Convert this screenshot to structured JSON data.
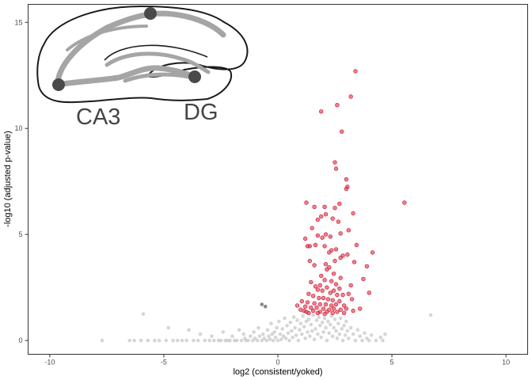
{
  "chart_data": {
    "type": "scatter",
    "title": "",
    "xlabel": "log2 (consistent/yoked)",
    "ylabel": "-log10 (adjusted p-value)",
    "xlim": [
      -10.95,
      10.95
    ],
    "ylim": [
      -0.65,
      15.85
    ],
    "x_ticks": [
      -10,
      -5,
      0,
      5,
      10
    ],
    "y_ticks": [
      0,
      5,
      10,
      15
    ],
    "grid": false,
    "legend": "none",
    "colors": {
      "significant": "#d7263d",
      "not_significant": "#c8c8c8",
      "down_marked": "#616161"
    },
    "inset": {
      "labels": [
        "CA3",
        "DG"
      ]
    },
    "series": [
      {
        "category": "not_significant",
        "points": [
          [
            -7.7,
            0.0
          ],
          [
            -6.5,
            0.0
          ],
          [
            -6.3,
            0.0
          ],
          [
            -6.0,
            0.0
          ],
          [
            -5.9,
            1.25
          ],
          [
            -5.7,
            0.0
          ],
          [
            -5.4,
            0.0
          ],
          [
            -5.2,
            0.0
          ],
          [
            -4.9,
            0.0
          ],
          [
            -4.8,
            0.6
          ],
          [
            -4.6,
            0.0
          ],
          [
            -4.4,
            0.0
          ],
          [
            -4.2,
            0.0
          ],
          [
            -4.0,
            0.0
          ],
          [
            -3.9,
            0.5
          ],
          [
            -3.7,
            0.0
          ],
          [
            -3.5,
            0.0
          ],
          [
            -3.4,
            0.3
          ],
          [
            -3.2,
            0.0
          ],
          [
            -3.0,
            0.0
          ],
          [
            -2.9,
            0.2
          ],
          [
            -2.8,
            0.0
          ],
          [
            -2.6,
            0.0
          ],
          [
            -2.5,
            0.0
          ],
          [
            -2.4,
            0.4
          ],
          [
            -2.3,
            0.0
          ],
          [
            -2.2,
            0.0
          ],
          [
            -2.1,
            0.0
          ],
          [
            -2.0,
            0.2
          ],
          [
            -1.9,
            0.0
          ],
          [
            -1.8,
            0.0
          ],
          [
            -1.7,
            0.5
          ],
          [
            -1.6,
            0.0
          ],
          [
            -1.5,
            0.3
          ],
          [
            -1.45,
            0.1
          ],
          [
            -1.4,
            0.0
          ],
          [
            -1.3,
            0.0
          ],
          [
            -1.2,
            0.2
          ],
          [
            -1.1,
            0.0
          ],
          [
            -1.05,
            0.4
          ],
          [
            -1.0,
            0.1
          ],
          [
            -0.9,
            0.0
          ],
          [
            -0.85,
            0.6
          ],
          [
            -0.8,
            0.2
          ],
          [
            -0.7,
            0.0
          ],
          [
            -0.65,
            0.3
          ],
          [
            -0.6,
            0.1
          ],
          [
            -0.5,
            0.0
          ],
          [
            -0.45,
            0.5
          ],
          [
            -0.4,
            0.2
          ],
          [
            -0.35,
            0.05
          ],
          [
            -0.3,
            0.8
          ],
          [
            -0.25,
            0.3
          ],
          [
            -0.2,
            0.0
          ],
          [
            -0.15,
            0.4
          ],
          [
            -0.1,
            0.15
          ],
          [
            -0.05,
            0.6
          ],
          [
            0.0,
            0.0
          ],
          [
            0.05,
            0.9
          ],
          [
            0.1,
            0.3
          ],
          [
            0.15,
            0.05
          ],
          [
            0.2,
            0.55
          ],
          [
            0.25,
            0.2
          ],
          [
            0.3,
            1.05
          ],
          [
            0.35,
            0.1
          ],
          [
            0.4,
            0.7
          ],
          [
            0.45,
            0.35
          ],
          [
            0.5,
            0.0
          ],
          [
            0.55,
            0.85
          ],
          [
            0.6,
            0.45
          ],
          [
            0.65,
            0.15
          ],
          [
            0.7,
            1.1
          ],
          [
            0.75,
            0.6
          ],
          [
            0.8,
            0.25
          ],
          [
            0.85,
            0.95
          ],
          [
            0.9,
            0.0
          ],
          [
            0.95,
            0.5
          ],
          [
            1.0,
            0.8
          ],
          [
            1.05,
            0.3
          ],
          [
            1.1,
            1.15
          ],
          [
            1.15,
            0.65
          ],
          [
            1.2,
            0.1
          ],
          [
            1.25,
            0.9
          ],
          [
            1.3,
            0.4
          ],
          [
            1.35,
            1.0
          ],
          [
            1.4,
            0.2
          ],
          [
            1.45,
            0.75
          ],
          [
            1.5,
            0.45
          ],
          [
            1.55,
            1.2
          ],
          [
            1.6,
            0.05
          ],
          [
            1.65,
            0.55
          ],
          [
            1.7,
            0.95
          ],
          [
            1.75,
            0.3
          ],
          [
            1.8,
            1.1
          ],
          [
            1.85,
            0.7
          ],
          [
            1.9,
            0.15
          ],
          [
            1.95,
            0.85
          ],
          [
            2.0,
            0.4
          ],
          [
            2.05,
            1.05
          ],
          [
            2.1,
            0.6
          ],
          [
            2.15,
            0.0
          ],
          [
            2.2,
            0.9
          ],
          [
            2.25,
            0.35
          ],
          [
            2.3,
            0.75
          ],
          [
            2.35,
            1.15
          ],
          [
            2.4,
            0.2
          ],
          [
            2.45,
            0.6
          ],
          [
            2.5,
            1.0
          ],
          [
            2.55,
            0.45
          ],
          [
            2.6,
            0.1
          ],
          [
            2.65,
            0.8
          ],
          [
            2.7,
            0.3
          ],
          [
            2.75,
            1.05
          ],
          [
            2.8,
            0.55
          ],
          [
            2.85,
            0.0
          ],
          [
            2.9,
            0.7
          ],
          [
            2.95,
            0.25
          ],
          [
            3.0,
            0.9
          ],
          [
            3.05,
            0.45
          ],
          [
            3.1,
            0.1
          ],
          [
            3.2,
            0.6
          ],
          [
            3.3,
            0.3
          ],
          [
            3.4,
            0.0
          ],
          [
            3.5,
            0.5
          ],
          [
            3.6,
            0.2
          ],
          [
            3.7,
            0.0
          ],
          [
            3.8,
            0.35
          ],
          [
            3.9,
            0.1
          ],
          [
            4.0,
            0.0
          ],
          [
            4.1,
            0.25
          ],
          [
            4.3,
            0.0
          ],
          [
            4.5,
            0.15
          ],
          [
            4.6,
            0.0
          ],
          [
            4.7,
            0.3
          ],
          [
            6.7,
            1.2
          ]
        ]
      },
      {
        "category": "down_marked",
        "points": [
          [
            -0.7,
            1.7
          ],
          [
            -0.55,
            1.6
          ]
        ]
      },
      {
        "category": "significant",
        "points": [
          [
            3.4,
            12.7
          ],
          [
            3.2,
            11.5
          ],
          [
            2.6,
            11.1
          ],
          [
            1.9,
            10.8
          ],
          [
            2.8,
            9.85
          ],
          [
            2.5,
            8.4
          ],
          [
            2.55,
            8.1
          ],
          [
            3.0,
            7.6
          ],
          [
            3.05,
            7.25
          ],
          [
            3.0,
            7.15
          ],
          [
            5.55,
            6.5
          ],
          [
            1.25,
            6.5
          ],
          [
            2.7,
            6.45
          ],
          [
            2.05,
            6.3
          ],
          [
            1.6,
            6.3
          ],
          [
            2.5,
            6.25
          ],
          [
            3.3,
            6.0
          ],
          [
            2.1,
            5.95
          ],
          [
            1.9,
            5.85
          ],
          [
            2.4,
            5.75
          ],
          [
            1.75,
            5.7
          ],
          [
            2.65,
            5.6
          ],
          [
            1.5,
            5.3
          ],
          [
            3.1,
            5.2
          ],
          [
            2.75,
            5.05
          ],
          [
            2.1,
            5.0
          ],
          [
            1.75,
            4.95
          ],
          [
            2.3,
            4.9
          ],
          [
            1.95,
            4.85
          ],
          [
            1.2,
            4.8
          ],
          [
            1.65,
            4.5
          ],
          [
            1.3,
            4.45
          ],
          [
            1.4,
            4.45
          ],
          [
            2.05,
            4.45
          ],
          [
            3.45,
            4.5
          ],
          [
            2.55,
            4.3
          ],
          [
            2.35,
            4.25
          ],
          [
            2.25,
            4.15
          ],
          [
            2.85,
            4.0
          ],
          [
            3.05,
            4.05
          ],
          [
            4.15,
            4.15
          ],
          [
            2.75,
            3.9
          ],
          [
            2.5,
            3.75
          ],
          [
            1.4,
            3.75
          ],
          [
            3.35,
            3.7
          ],
          [
            2.1,
            3.6
          ],
          [
            1.6,
            3.55
          ],
          [
            3.9,
            3.5
          ],
          [
            2.25,
            3.45
          ],
          [
            2.15,
            3.35
          ],
          [
            2.45,
            3.15
          ],
          [
            1.9,
            3.05
          ],
          [
            2.75,
            2.95
          ],
          [
            2.05,
            2.85
          ],
          [
            3.75,
            2.9
          ],
          [
            2.35,
            2.8
          ],
          [
            1.45,
            2.75
          ],
          [
            2.55,
            2.65
          ],
          [
            1.85,
            2.6
          ],
          [
            1.65,
            2.55
          ],
          [
            3.2,
            2.6
          ],
          [
            2.15,
            2.5
          ],
          [
            2.7,
            2.45
          ],
          [
            1.75,
            2.4
          ],
          [
            2.45,
            2.35
          ],
          [
            1.95,
            2.35
          ],
          [
            2.3,
            2.25
          ],
          [
            4.0,
            2.25
          ],
          [
            1.35,
            2.2
          ],
          [
            2.85,
            2.15
          ],
          [
            3.1,
            2.2
          ],
          [
            2.6,
            2.15
          ],
          [
            1.55,
            2.1
          ],
          [
            1.8,
            2.0
          ],
          [
            2.0,
            2.0
          ],
          [
            2.2,
            1.95
          ],
          [
            2.4,
            1.9
          ],
          [
            2.7,
            1.85
          ],
          [
            3.25,
            1.95
          ],
          [
            1.05,
            1.85
          ],
          [
            1.3,
            1.8
          ],
          [
            1.6,
            1.75
          ],
          [
            1.85,
            1.7
          ],
          [
            2.1,
            1.7
          ],
          [
            2.35,
            1.65
          ],
          [
            2.55,
            1.7
          ],
          [
            2.9,
            1.65
          ],
          [
            0.85,
            1.65
          ],
          [
            1.2,
            1.6
          ],
          [
            1.45,
            1.55
          ],
          [
            1.7,
            1.55
          ],
          [
            2.0,
            1.5
          ],
          [
            2.25,
            1.45
          ],
          [
            2.45,
            1.5
          ],
          [
            2.75,
            1.45
          ],
          [
            3.0,
            1.5
          ],
          [
            1.15,
            1.4
          ],
          [
            1.55,
            1.4
          ],
          [
            1.85,
            1.35
          ],
          [
            2.15,
            1.35
          ],
          [
            2.4,
            1.3
          ],
          [
            2.6,
            1.35
          ],
          [
            1.35,
            1.3
          ],
          [
            1.75,
            1.3
          ],
          [
            2.05,
            1.25
          ],
          [
            2.9,
            1.3
          ],
          [
            3.3,
            1.4
          ],
          [
            3.6,
            1.5
          ],
          [
            1.0,
            1.45
          ],
          [
            1.25,
            1.35
          ]
        ]
      }
    ]
  }
}
